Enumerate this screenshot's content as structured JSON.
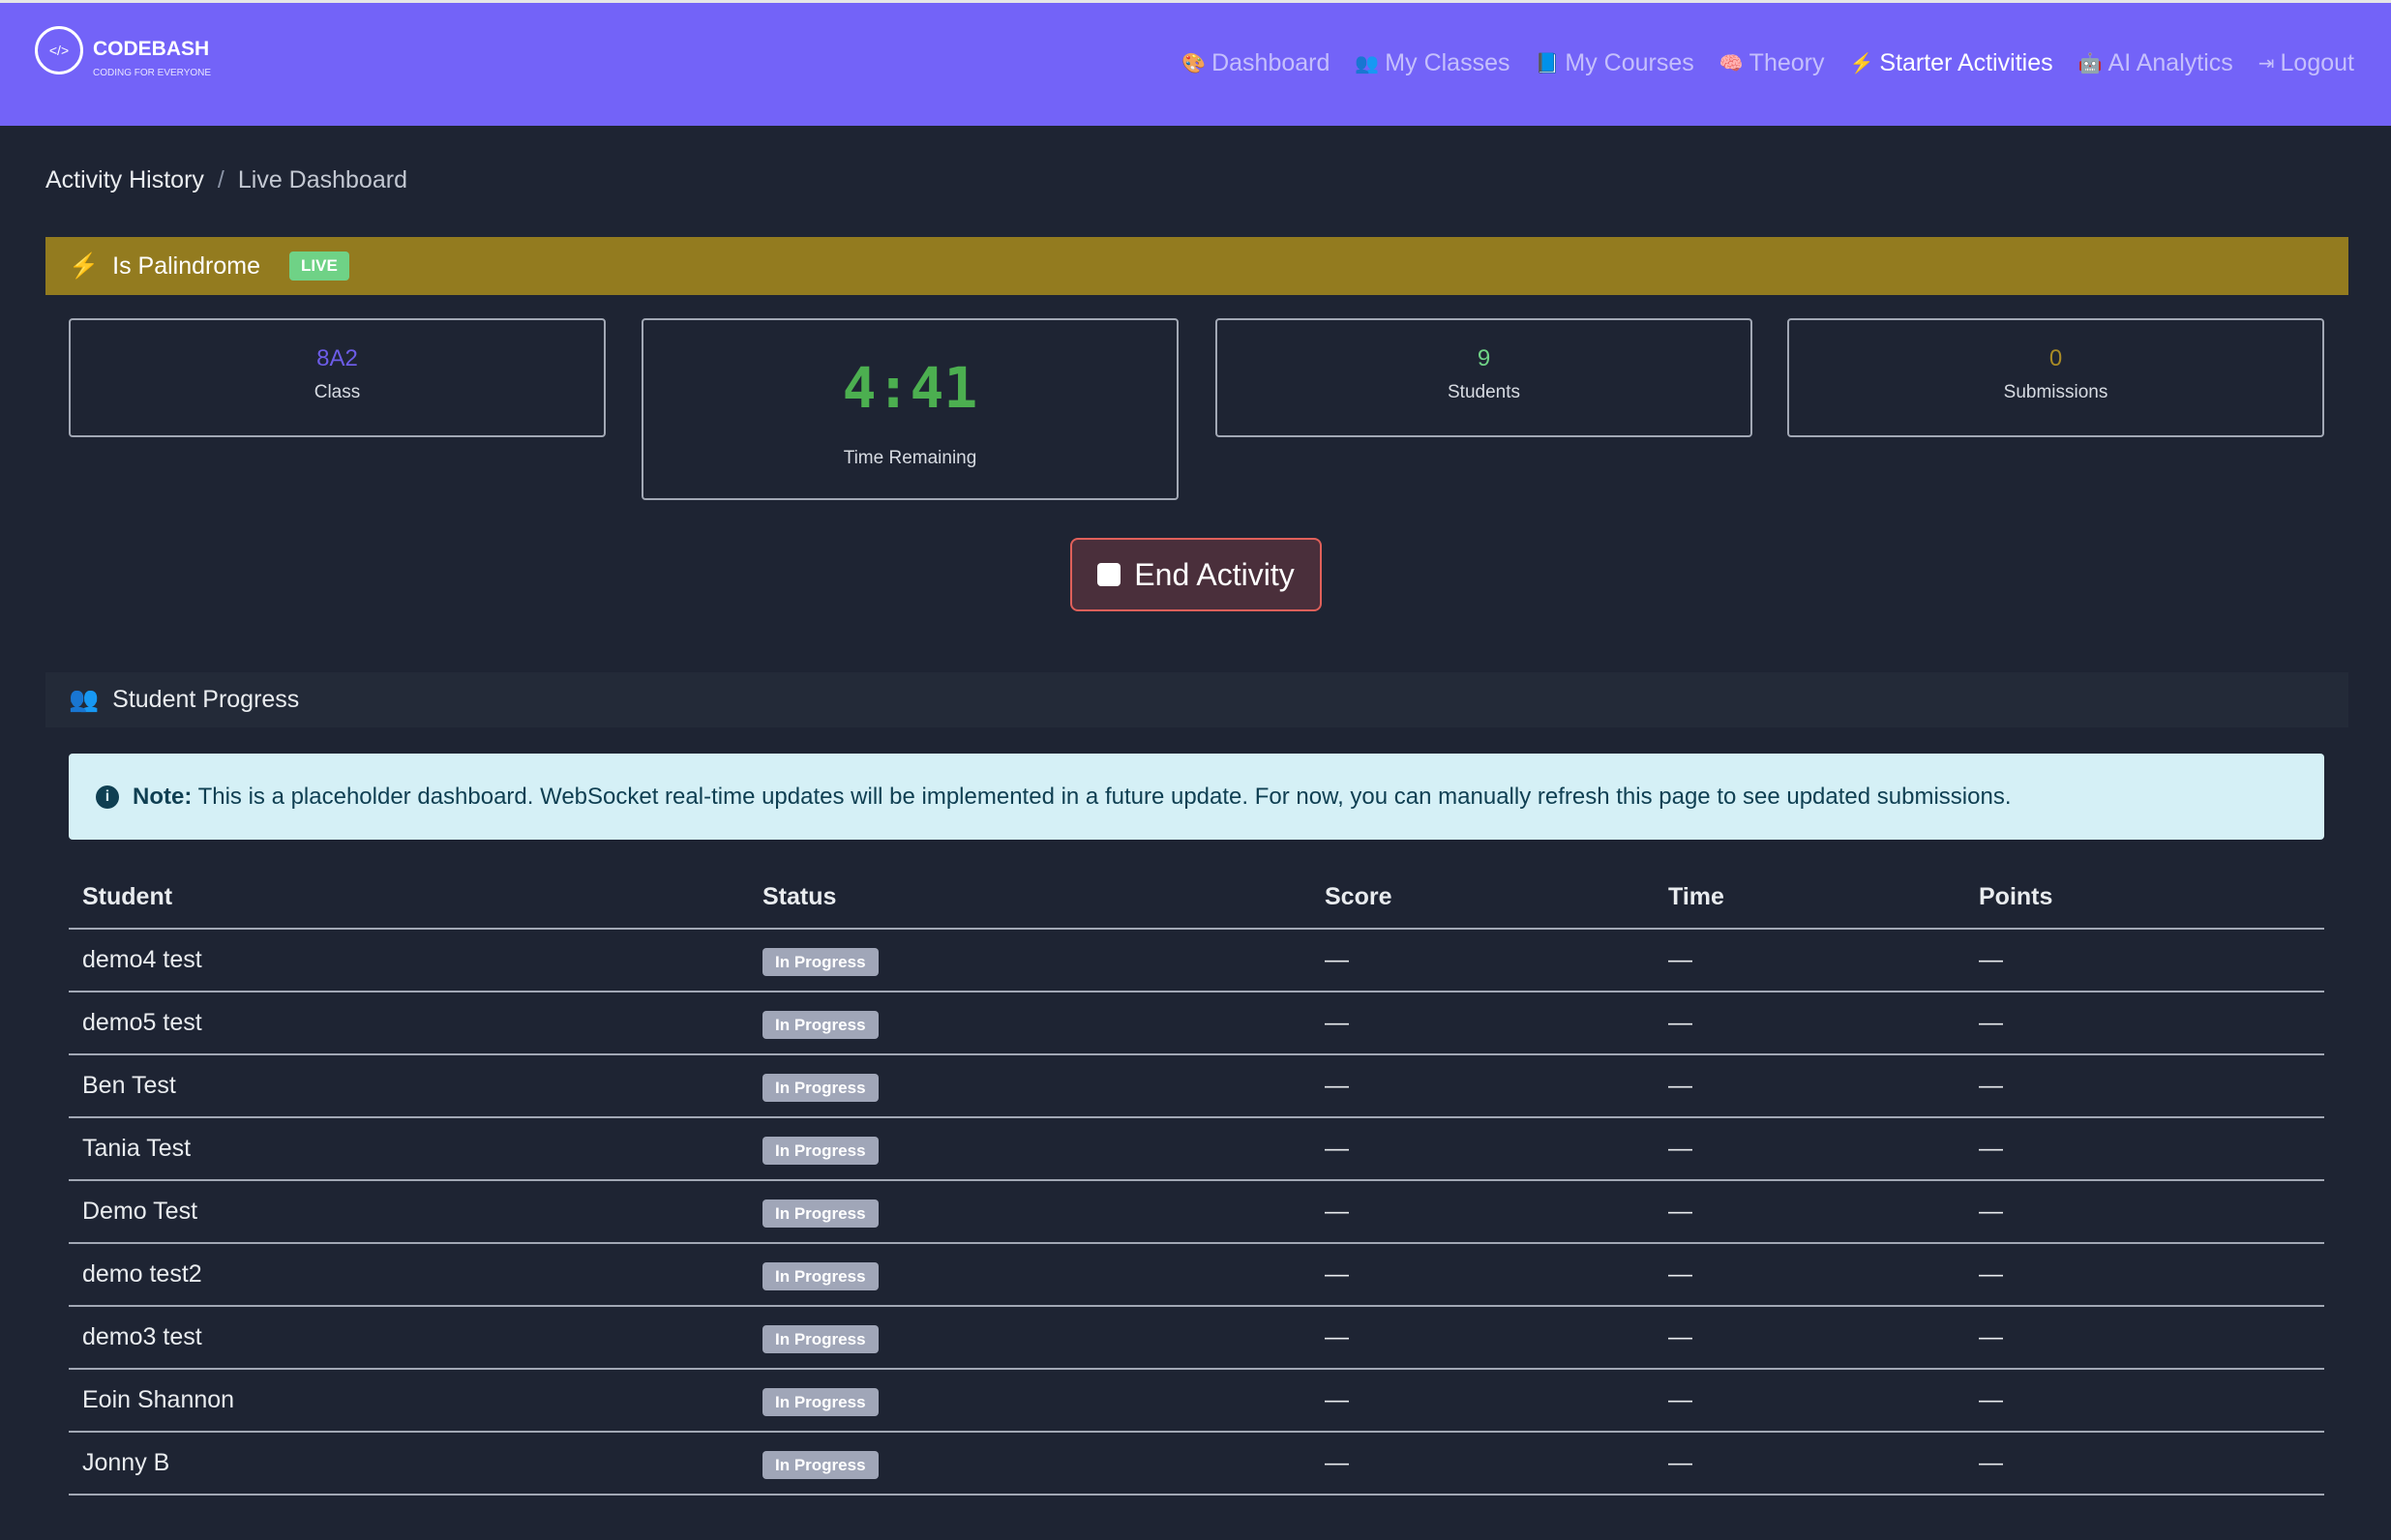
{
  "header": {
    "brand": "CODEBASH",
    "tagline": "CODING FOR EVERYONE",
    "logo_glyph": "</>",
    "nav": [
      {
        "label": "Dashboard",
        "icon": "palette-icon"
      },
      {
        "label": "My Classes",
        "icon": "users-icon"
      },
      {
        "label": "My Courses",
        "icon": "book-icon"
      },
      {
        "label": "Theory",
        "icon": "brain-icon"
      },
      {
        "label": "Starter Activities",
        "icon": "bolt-icon",
        "active": true
      },
      {
        "label": "AI Analytics",
        "icon": "robot-icon"
      },
      {
        "label": "Logout",
        "icon": "sign-out-icon"
      }
    ]
  },
  "breadcrumb": {
    "parent": "Activity History",
    "separator": "/",
    "current": "Live Dashboard"
  },
  "activity": {
    "title": "Is Palindrome",
    "status_badge": "LIVE"
  },
  "stats": {
    "class": {
      "value": "8A2",
      "label": "Class"
    },
    "time": {
      "value": "4:41",
      "label": "Time Remaining"
    },
    "students": {
      "value": "9",
      "label": "Students"
    },
    "submissions": {
      "value": "0",
      "label": "Submissions"
    }
  },
  "end_button": "End Activity",
  "progress": {
    "title": "Student Progress",
    "note_label": "Note:",
    "note_text": "This is a placeholder dashboard. WebSocket real-time updates will be implemented in a future update. For now, you can manually refresh this page to see updated submissions.",
    "columns": [
      "Student",
      "Status",
      "Score",
      "Time",
      "Points"
    ],
    "rows": [
      {
        "student": "demo4 test",
        "status": "In Progress",
        "score": "—",
        "time": "—",
        "points": "—"
      },
      {
        "student": "demo5 test",
        "status": "In Progress",
        "score": "—",
        "time": "—",
        "points": "—"
      },
      {
        "student": "Ben Test",
        "status": "In Progress",
        "score": "—",
        "time": "—",
        "points": "—"
      },
      {
        "student": "Tania Test",
        "status": "In Progress",
        "score": "—",
        "time": "—",
        "points": "—"
      },
      {
        "student": "Demo Test",
        "status": "In Progress",
        "score": "—",
        "time": "—",
        "points": "—"
      },
      {
        "student": "demo test2",
        "status": "In Progress",
        "score": "—",
        "time": "—",
        "points": "—"
      },
      {
        "student": "demo3 test",
        "status": "In Progress",
        "score": "—",
        "time": "—",
        "points": "—"
      },
      {
        "student": "Eoin Shannon",
        "status": "In Progress",
        "score": "—",
        "time": "—",
        "points": "—"
      },
      {
        "student": "Jonny B",
        "status": "In Progress",
        "score": "—",
        "time": "—",
        "points": "—"
      }
    ]
  },
  "colors": {
    "header": "#7363f8",
    "banner": "#937b1f",
    "live": "#6fd286",
    "timer": "#4caf50",
    "class_value": "#6c5ce7",
    "students_value": "#6fd286",
    "submissions_value": "#937b1f"
  }
}
